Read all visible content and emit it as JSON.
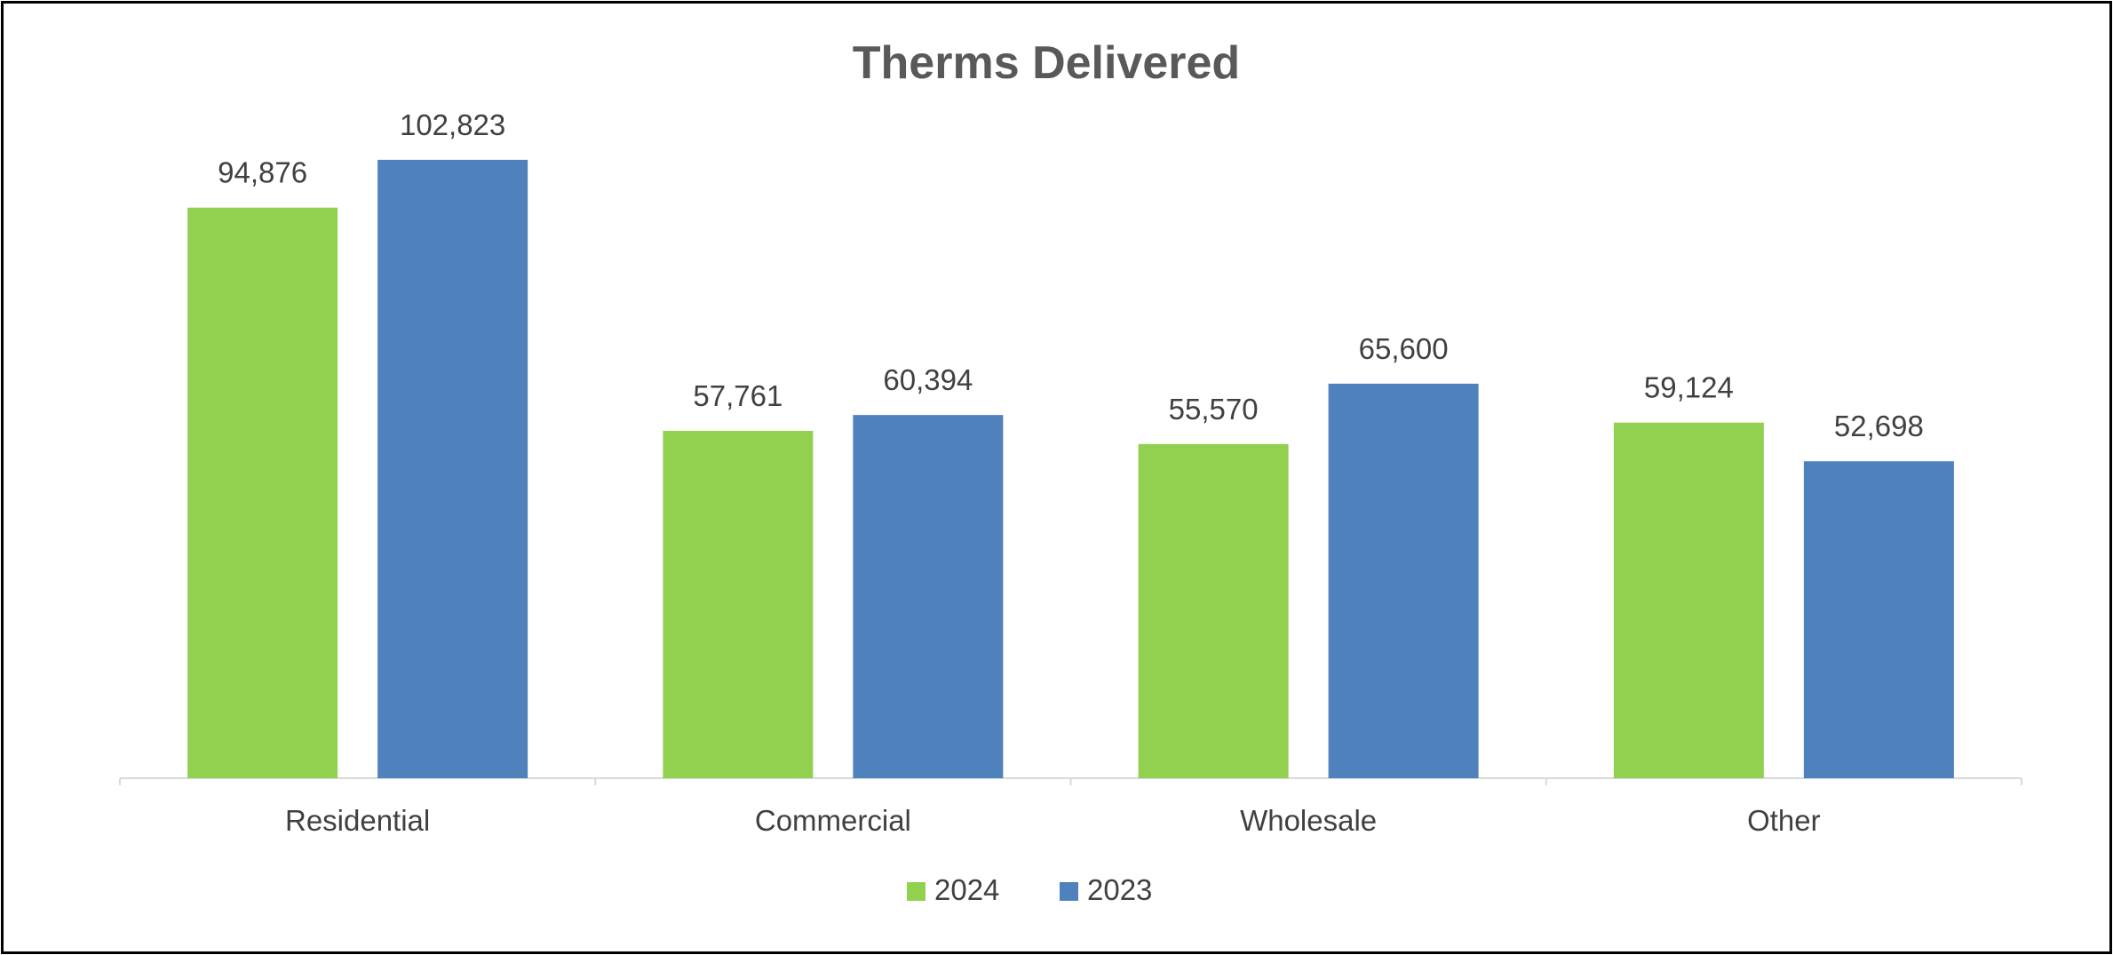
{
  "chart_data": {
    "type": "bar",
    "title": "Therms Delivered",
    "xlabel": "",
    "ylabel": "",
    "categories": [
      "Residential",
      "Commercial",
      "Wholesale",
      "Other"
    ],
    "series": [
      {
        "name": "2024",
        "color": "#92d050",
        "values": [
          94876,
          57761,
          55570,
          59124
        ],
        "labels": [
          "94,876",
          "57,761",
          "55,570",
          "59,124"
        ]
      },
      {
        "name": "2023",
        "color": "#4f81bd",
        "values": [
          102823,
          60394,
          65600,
          52698
        ],
        "labels": [
          "102,823",
          "60,394",
          "65,600",
          "52,698"
        ]
      }
    ],
    "ylim": [
      0,
      115000
    ],
    "grid": false,
    "legend": "bottom"
  }
}
